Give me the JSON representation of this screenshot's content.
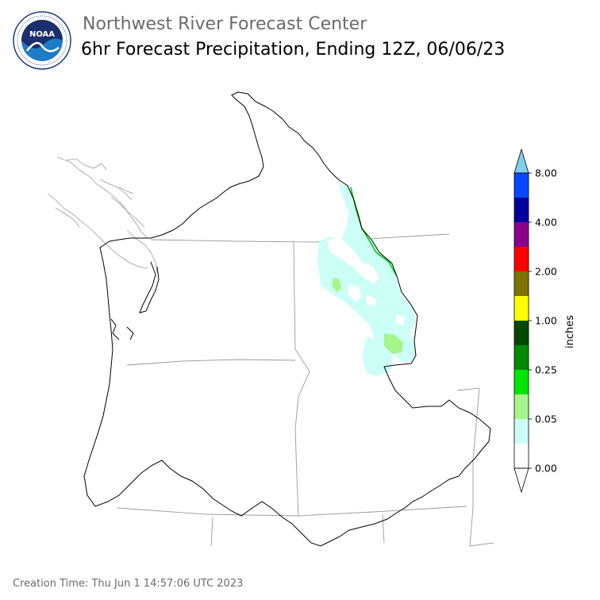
{
  "header": {
    "agency": "Northwest River Forecast Center",
    "product": "6hr Forecast Precipitation, Ending 12Z, 06/06/23"
  },
  "logo": {
    "text": "NOAA",
    "ring_text": "NATIONAL OCEANIC AND ATMOSPHERIC ADMINISTRATION · U.S. DEPARTMENT OF COMMERCE",
    "colors": {
      "outer": "#ffffff",
      "ring": "#1c3f78",
      "sky": "#1a2f6b",
      "sea": "#1e7cc6"
    }
  },
  "legend": {
    "unit_label": "inches",
    "bins": [
      {
        "color": "#ffffff"
      },
      {
        "color": "#ccfff5"
      },
      {
        "color": "#a6f58c"
      },
      {
        "color": "#00e600"
      },
      {
        "color": "#008a00"
      },
      {
        "color": "#004a00"
      },
      {
        "color": "#ffff00"
      },
      {
        "color": "#7f7300"
      },
      {
        "color": "#ff0000"
      },
      {
        "color": "#8a008a"
      },
      {
        "color": "#0000a0"
      },
      {
        "color": "#0a46ff"
      }
    ],
    "extend_max_color": "#7fcfee",
    "extend_min_color": "#ffffff",
    "ticks": [
      {
        "label": "0.00",
        "bin_index": 0
      },
      {
        "label": "0.05",
        "bin_index": 2
      },
      {
        "label": "0.25",
        "bin_index": 4
      },
      {
        "label": "1.00",
        "bin_index": 6
      },
      {
        "label": "2.00",
        "bin_index": 8
      },
      {
        "label": "4.00",
        "bin_index": 10
      },
      {
        "label": "8.00",
        "bin_index": 12
      }
    ]
  },
  "map": {
    "precip_colors": {
      "light": "#ccfff5",
      "moderate": "#a6f58c",
      "heavier": "#00c800"
    }
  },
  "footer": {
    "creation_time": "Creation Time: Thu Jun 1 14:57:06 UTC 2023"
  }
}
